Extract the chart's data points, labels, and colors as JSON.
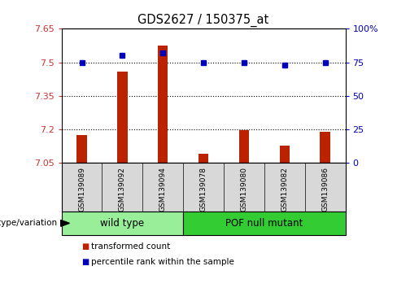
{
  "title": "GDS2627 / 150375_at",
  "samples": [
    "GSM139089",
    "GSM139092",
    "GSM139094",
    "GSM139078",
    "GSM139080",
    "GSM139082",
    "GSM139086"
  ],
  "bar_values": [
    7.175,
    7.46,
    7.575,
    7.09,
    7.195,
    7.125,
    7.19
  ],
  "dot_values": [
    75,
    80,
    82,
    75,
    75,
    73,
    75
  ],
  "ylim_left": [
    7.05,
    7.65
  ],
  "ylim_right": [
    0,
    100
  ],
  "yticks_left": [
    7.05,
    7.2,
    7.35,
    7.5,
    7.65
  ],
  "yticks_right": [
    0,
    25,
    50,
    75,
    100
  ],
  "ytick_labels_left": [
    "7.05",
    "7.2",
    "7.35",
    "7.5",
    "7.65"
  ],
  "ytick_labels_right": [
    "0",
    "25",
    "50",
    "75",
    "100%"
  ],
  "hlines": [
    7.2,
    7.35,
    7.5
  ],
  "groups": [
    {
      "label": "wild type",
      "indices": [
        0,
        1,
        2
      ],
      "color": "#99ee99"
    },
    {
      "label": "POF null mutant",
      "indices": [
        3,
        4,
        5,
        6
      ],
      "color": "#33cc33"
    }
  ],
  "bar_color": "#bb2200",
  "dot_color": "#0000bb",
  "bar_bottom": 7.05,
  "xlabel_bottom": "genotype/variation",
  "legend_items": [
    {
      "label": "transformed count",
      "color": "#bb2200"
    },
    {
      "label": "percentile rank within the sample",
      "color": "#0000bb"
    }
  ],
  "tick_color_left": "#cc3333",
  "tick_color_right": "#0000bb",
  "sample_bg": "#d8d8d8",
  "plot_bg": "#ffffff"
}
